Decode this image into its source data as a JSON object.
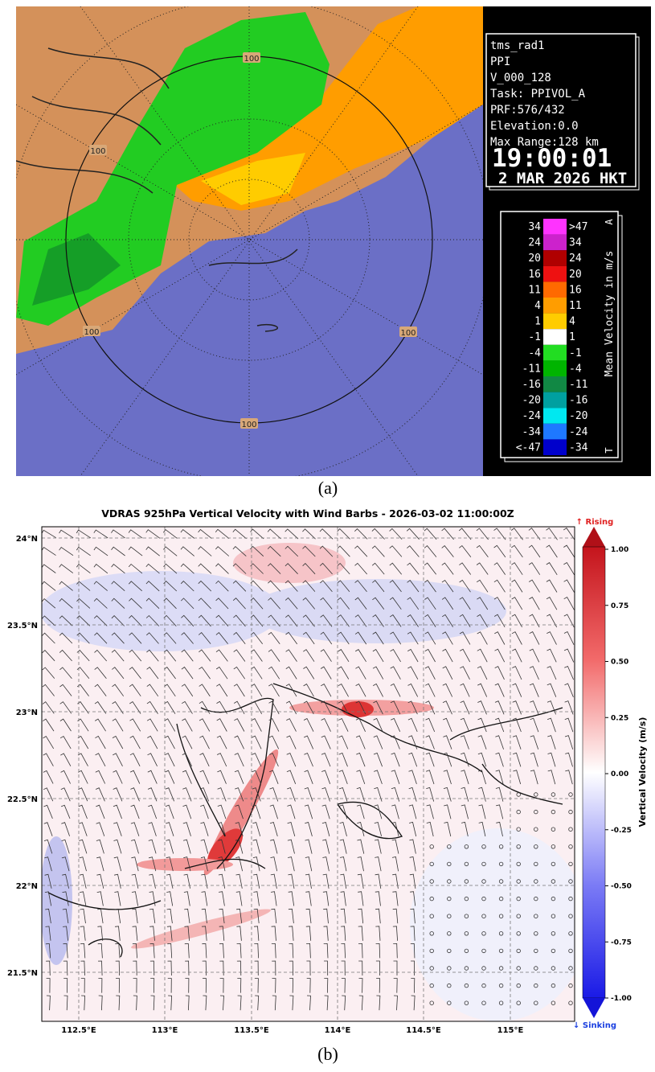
{
  "panel_a": {
    "info": {
      "radar": "tms_rad1",
      "product": "PPI",
      "volume": "V_000_128",
      "task": "Task: PPIVOL_A",
      "prf": "PRF:576/432",
      "elevation": "Elevation:0.0",
      "max_range": "Max Range:128 km",
      "time": "19:00:01",
      "date": "2 MAR 2026 HKT"
    },
    "range_labels": [
      "100",
      "100",
      "100",
      "100",
      "100"
    ],
    "legend": {
      "title": "Mean Velocity in m/s",
      "corner_top": "A",
      "corner_bottom": "T",
      "rows": [
        {
          "from": "34",
          "to": ">47",
          "color": "#ff33ff"
        },
        {
          "from": "24",
          "to": "34",
          "color": "#cc22cc"
        },
        {
          "from": "20",
          "to": "24",
          "color": "#b00000"
        },
        {
          "from": "16",
          "to": "20",
          "color": "#ee1111"
        },
        {
          "from": "11",
          "to": "16",
          "color": "#ff6a00"
        },
        {
          "from": "4",
          "to": "11",
          "color": "#ff9d00"
        },
        {
          "from": "1",
          "to": "4",
          "color": "#ffcc00"
        },
        {
          "from": "-1",
          "to": "1",
          "color": "#ffffff"
        },
        {
          "from": "-4",
          "to": "-1",
          "color": "#22dd22"
        },
        {
          "from": "-11",
          "to": "-4",
          "color": "#00b400"
        },
        {
          "from": "-16",
          "to": "-11",
          "color": "#118844"
        },
        {
          "from": "-20",
          "to": "-16",
          "color": "#00a0a0"
        },
        {
          "from": "-24",
          "to": "-20",
          "color": "#00e8f0"
        },
        {
          "from": "-34",
          "to": "-24",
          "color": "#1e78ff"
        },
        {
          "from": "<-47",
          "to": "-34",
          "color": "#0000cc"
        }
      ]
    },
    "caption": "(a)"
  },
  "panel_b": {
    "title": "VDRAS 925hPa Vertical Velocity with Wind Barbs - 2026-03-02 11:00:00Z",
    "lat_labels": [
      "24°N",
      "23.5°N",
      "23°N",
      "22.5°N",
      "22°N",
      "21.5°N"
    ],
    "lon_labels": [
      "112.5°E",
      "113°E",
      "113.5°E",
      "114°E",
      "114.5°E",
      "115°E"
    ],
    "colorbar": {
      "label": "Vertical Velocity (m/s)",
      "top_note": "↑ Rising",
      "bottom_note": "↓ Sinking",
      "tick_labels": [
        "1.00",
        "0.75",
        "0.50",
        "0.25",
        "0.00",
        "-0.25",
        "-0.50",
        "-0.75",
        "-1.00"
      ]
    },
    "caption": "(b)"
  }
}
